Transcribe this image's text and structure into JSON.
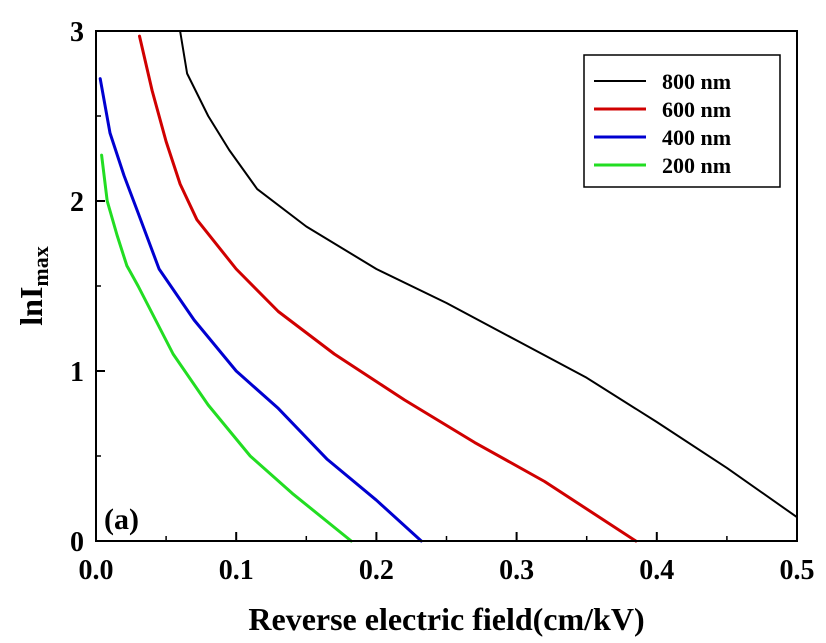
{
  "chart_data": {
    "type": "line",
    "panel_label": "(a)",
    "xlabel": "Reverse electric field(cm/kV)",
    "ylabel": {
      "main": "lnI",
      "sub": "max"
    },
    "xlim": [
      0.0,
      0.5
    ],
    "ylim": [
      0,
      3
    ],
    "x_ticks": [
      0.0,
      0.1,
      0.2,
      0.3,
      0.4,
      0.5
    ],
    "x_tick_labels": [
      "0.0",
      "0.1",
      "0.2",
      "0.3",
      "0.4",
      "0.5"
    ],
    "y_ticks": [
      0,
      1,
      2,
      3
    ],
    "y_tick_labels": [
      "0",
      "1",
      "2",
      "3"
    ],
    "grid": false,
    "legend_position": "top-right",
    "series": [
      {
        "name": "800 nm",
        "color": "#000000",
        "points": [
          [
            0.06,
            3.0
          ],
          [
            0.065,
            2.75
          ],
          [
            0.08,
            2.5
          ],
          [
            0.095,
            2.3
          ],
          [
            0.115,
            2.07
          ],
          [
            0.15,
            1.85
          ],
          [
            0.2,
            1.6
          ],
          [
            0.25,
            1.4
          ],
          [
            0.3,
            1.18
          ],
          [
            0.35,
            0.96
          ],
          [
            0.4,
            0.7
          ],
          [
            0.45,
            0.43
          ],
          [
            0.5,
            0.14
          ]
        ]
      },
      {
        "name": "600 nm",
        "color": "#d00000",
        "points": [
          [
            0.031,
            2.97
          ],
          [
            0.04,
            2.65
          ],
          [
            0.05,
            2.35
          ],
          [
            0.06,
            2.1
          ],
          [
            0.072,
            1.89
          ],
          [
            0.1,
            1.6
          ],
          [
            0.13,
            1.35
          ],
          [
            0.17,
            1.1
          ],
          [
            0.22,
            0.83
          ],
          [
            0.27,
            0.58
          ],
          [
            0.32,
            0.35
          ],
          [
            0.385,
            0.0
          ]
        ]
      },
      {
        "name": "400 nm",
        "color": "#0000d0",
        "points": [
          [
            0.003,
            2.72
          ],
          [
            0.01,
            2.4
          ],
          [
            0.02,
            2.15
          ],
          [
            0.03,
            1.93
          ],
          [
            0.045,
            1.6
          ],
          [
            0.07,
            1.3
          ],
          [
            0.1,
            1.0
          ],
          [
            0.13,
            0.78
          ],
          [
            0.165,
            0.48
          ],
          [
            0.2,
            0.24
          ],
          [
            0.232,
            0.0
          ]
        ]
      },
      {
        "name": "200 nm",
        "color": "#22dd22",
        "points": [
          [
            0.004,
            2.27
          ],
          [
            0.008,
            2.0
          ],
          [
            0.015,
            1.8
          ],
          [
            0.022,
            1.62
          ],
          [
            0.03,
            1.5
          ],
          [
            0.055,
            1.1
          ],
          [
            0.08,
            0.8
          ],
          [
            0.11,
            0.5
          ],
          [
            0.14,
            0.28
          ],
          [
            0.182,
            0.0
          ]
        ]
      }
    ]
  }
}
